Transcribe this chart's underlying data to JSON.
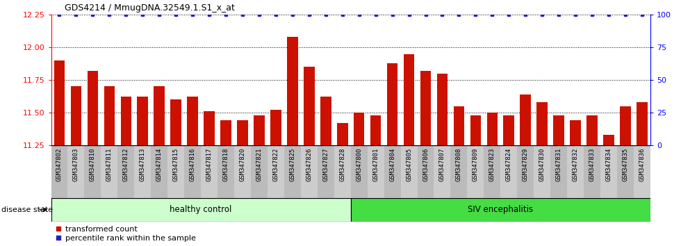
{
  "title": "GDS4214 / MmugDNA.32549.1.S1_x_at",
  "categories": [
    "GSM347802",
    "GSM347803",
    "GSM347810",
    "GSM347811",
    "GSM347812",
    "GSM347813",
    "GSM347814",
    "GSM347815",
    "GSM347816",
    "GSM347817",
    "GSM347818",
    "GSM347820",
    "GSM347821",
    "GSM347822",
    "GSM347825",
    "GSM347826",
    "GSM347827",
    "GSM347828",
    "GSM347800",
    "GSM347801",
    "GSM347804",
    "GSM347805",
    "GSM347806",
    "GSM347807",
    "GSM347808",
    "GSM347809",
    "GSM347823",
    "GSM347824",
    "GSM347829",
    "GSM347830",
    "GSM347831",
    "GSM347832",
    "GSM347833",
    "GSM347834",
    "GSM347835",
    "GSM347836"
  ],
  "bar_values": [
    11.9,
    11.7,
    11.82,
    11.7,
    11.62,
    11.62,
    11.7,
    11.6,
    11.62,
    11.51,
    11.44,
    11.44,
    11.48,
    11.52,
    12.08,
    11.85,
    11.62,
    11.42,
    11.5,
    11.48,
    11.88,
    11.95,
    11.82,
    11.8,
    11.55,
    11.48,
    11.5,
    11.48,
    11.64,
    11.58,
    11.48,
    11.44,
    11.48,
    11.33,
    11.55,
    11.58
  ],
  "bar_color": "#cc1100",
  "percentile_color": "#2222bb",
  "healthy_control_count": 18,
  "siv_encephalitis_count": 18,
  "ylim_left": [
    11.25,
    12.25
  ],
  "ylim_right": [
    0,
    100
  ],
  "yticks_left": [
    11.25,
    11.5,
    11.75,
    12.0,
    12.25
  ],
  "yticks_right": [
    0,
    25,
    50,
    75,
    100
  ],
  "legend_transformed": "transformed count",
  "legend_percentile": "percentile rank within the sample",
  "healthy_label": "healthy control",
  "siv_label": "SIV encephalitis",
  "disease_state_label": "disease state",
  "healthy_bg_color": "#ccffcc",
  "siv_bg_color": "#44dd44",
  "tick_bg_color": "#cccccc",
  "title_fontsize": 9,
  "bar_label_fontsize": 6.5,
  "disease_label_fontsize": 8.5,
  "legend_fontsize": 8
}
